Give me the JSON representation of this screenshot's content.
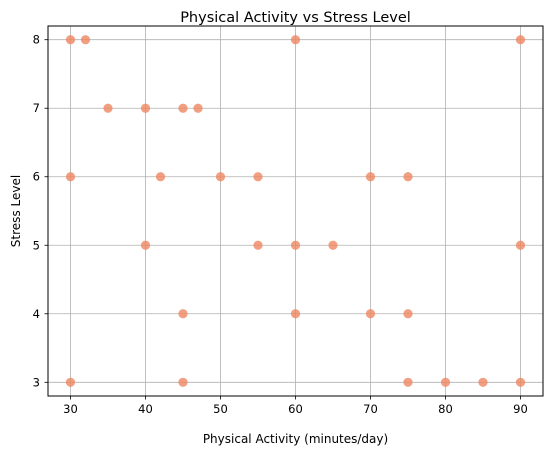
{
  "chart_data": {
    "type": "scatter",
    "title": "Physical Activity vs Stress Level",
    "xlabel": "Physical Activity (minutes/day)",
    "ylabel": "Stress Level",
    "xlim": [
      27,
      93
    ],
    "ylim": [
      2.8,
      8.2
    ],
    "xticks": [
      30,
      40,
      50,
      60,
      70,
      80,
      90
    ],
    "yticks": [
      3,
      4,
      5,
      6,
      7,
      8
    ],
    "grid": true,
    "point_color": "#ef8660",
    "grid_color": "#b0b0b0",
    "points": [
      {
        "x": 30,
        "y": 8
      },
      {
        "x": 32,
        "y": 8
      },
      {
        "x": 60,
        "y": 8
      },
      {
        "x": 90,
        "y": 8
      },
      {
        "x": 35,
        "y": 7
      },
      {
        "x": 40,
        "y": 7
      },
      {
        "x": 45,
        "y": 7
      },
      {
        "x": 47,
        "y": 7
      },
      {
        "x": 30,
        "y": 6
      },
      {
        "x": 42,
        "y": 6
      },
      {
        "x": 50,
        "y": 6
      },
      {
        "x": 55,
        "y": 6
      },
      {
        "x": 70,
        "y": 6
      },
      {
        "x": 75,
        "y": 6
      },
      {
        "x": 40,
        "y": 5
      },
      {
        "x": 55,
        "y": 5
      },
      {
        "x": 60,
        "y": 5
      },
      {
        "x": 65,
        "y": 5
      },
      {
        "x": 90,
        "y": 5
      },
      {
        "x": 45,
        "y": 4
      },
      {
        "x": 60,
        "y": 4
      },
      {
        "x": 70,
        "y": 4
      },
      {
        "x": 75,
        "y": 4
      },
      {
        "x": 30,
        "y": 3
      },
      {
        "x": 45,
        "y": 3
      },
      {
        "x": 75,
        "y": 3
      },
      {
        "x": 80,
        "y": 3
      },
      {
        "x": 85,
        "y": 3
      },
      {
        "x": 90,
        "y": 3
      }
    ]
  }
}
